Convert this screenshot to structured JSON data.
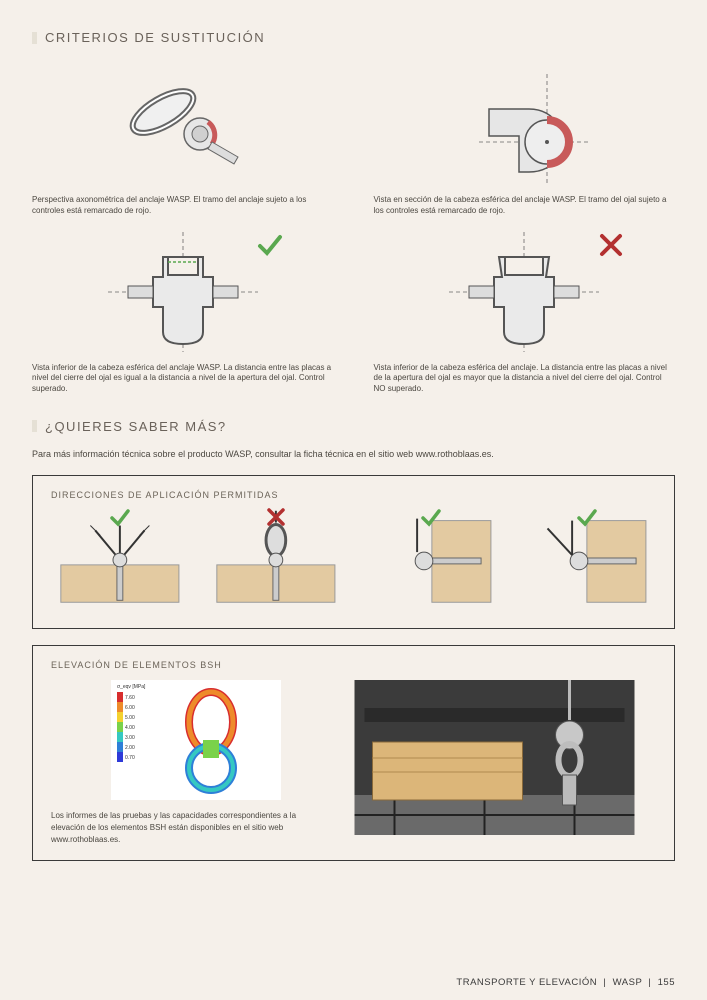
{
  "colors": {
    "page_bg": "#f5f0ea",
    "text": "#4b4740",
    "title": "#6a625a",
    "accent_bar": "#e5e0d5",
    "wood": "#e3caa1",
    "ok": "#5aa84f",
    "no": "#b33030",
    "red_highlight": "#c85a5a",
    "panel_border": "#3a3a3a",
    "metal_fill": "#eaeaea",
    "metal_stroke": "#555555"
  },
  "section1": {
    "title": "CRITERIOS DE SUSTITUCIÓN",
    "left_caption": "Perspectiva axonométrica del anclaje WASP.\nEl tramo del anclaje sujeto a los controles está remarcado de rojo.",
    "right_caption": "Vista en sección de la cabeza esférica del anclaje WASP.\nEl tramo del ojal sujeto a los controles está remarcado de rojo.",
    "left2_caption": "Vista inferior de la cabeza esférica del anclaje WASP. La distancia entre las placas a nivel del cierre del ojal es igual a la distancia a nivel de la apertura del ojal.\nControl superado.",
    "right2_caption": "Vista inferior de la cabeza esférica del anclaje. La distancia entre las placas a nivel de la apertura del ojal es mayor que la distancia a nivel del cierre del ojal.\nControl NO superado.",
    "left2_mark": "ok",
    "right2_mark": "no"
  },
  "section2": {
    "title": "¿QUIERES SABER MÁS?",
    "lead": "Para más información técnica sobre el producto WASP, consultar la ficha técnica en el sitio web www.rothoblaas.es."
  },
  "panel1": {
    "title": "DIRECCIONES DE APLICACIÓN PERMITIDAS",
    "cells": [
      {
        "mark": "ok",
        "orientation": "top",
        "angled": true
      },
      {
        "mark": "no",
        "orientation": "top",
        "angled": false
      },
      {
        "mark": "ok",
        "orientation": "side",
        "angled": false
      },
      {
        "mark": "ok",
        "orientation": "side",
        "angled": true
      }
    ]
  },
  "panel2": {
    "title": "ELEVACIÓN DE ELEMENTOS BSH",
    "text": "Los informes de las pruebas y las capacidades correspondientes a la elevación de los elementos BSH están disponibles en el sitio web www.rothoblaas.es.",
    "fem_legend": {
      "title": "σ_eqv [MPa]",
      "scale": [
        {
          "val": "7.60",
          "color": "#d82e2e"
        },
        {
          "val": "6.00",
          "color": "#ee8b2a"
        },
        {
          "val": "5.00",
          "color": "#f4d12e"
        },
        {
          "val": "4.00",
          "color": "#7ad24a"
        },
        {
          "val": "3.00",
          "color": "#35c8c2"
        },
        {
          "val": "2.00",
          "color": "#2e7fd8"
        },
        {
          "val": "0.70",
          "color": "#2e3ad8"
        }
      ]
    }
  },
  "footer": {
    "section": "TRANSPORTE Y ELEVACIÓN",
    "product": "WASP",
    "page": "155"
  },
  "typography": {
    "title_fontsize": 13,
    "caption_fontsize": 8,
    "subtext_fontsize": 9,
    "panel_title_fontsize": 9,
    "footer_fontsize": 9.5
  }
}
